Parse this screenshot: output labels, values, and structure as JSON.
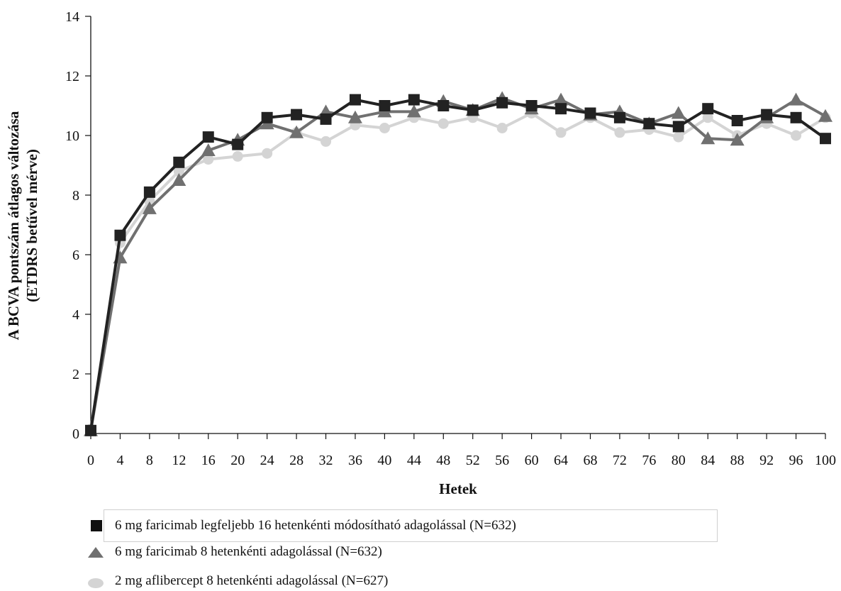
{
  "chart_data": {
    "type": "line",
    "title": "",
    "xlabel": "Hetek",
    "ylabel_line1": "A BCVA pontszám átlagos változása",
    "ylabel_line2": "(ETDRS betűvel mérve)",
    "xlim": [
      0,
      100
    ],
    "ylim": [
      0,
      14
    ],
    "xticks": [
      0,
      4,
      8,
      12,
      16,
      20,
      24,
      28,
      32,
      36,
      40,
      44,
      48,
      52,
      56,
      60,
      64,
      68,
      72,
      76,
      80,
      84,
      88,
      92,
      96,
      100
    ],
    "yticks": [
      0,
      2,
      4,
      6,
      8,
      10,
      12,
      14
    ],
    "grid": false,
    "legend_position": "bottom",
    "x": [
      0,
      4,
      8,
      12,
      16,
      20,
      24,
      28,
      32,
      36,
      40,
      44,
      48,
      52,
      56,
      60,
      64,
      68,
      72,
      76,
      80,
      84,
      88,
      92,
      96,
      100
    ],
    "series": [
      {
        "name": "2 mg aflibercept 8 hetenkénti adagolással (N=627)",
        "marker": "circle",
        "color": "#d4d4d4",
        "values": [
          0.15,
          6.4,
          7.8,
          8.8,
          9.2,
          9.3,
          9.4,
          10.1,
          9.8,
          10.35,
          10.25,
          10.6,
          10.4,
          10.6,
          10.25,
          10.75,
          10.1,
          10.6,
          10.1,
          10.2,
          9.95,
          10.6,
          10.0,
          10.4,
          10.0,
          10.6
        ]
      },
      {
        "name": "6 mg faricimab 8 hetenkénti adagolással (N=632)",
        "marker": "triangle",
        "color": "#707070",
        "values": [
          0.1,
          5.9,
          7.55,
          8.5,
          9.5,
          9.85,
          10.4,
          10.1,
          10.8,
          10.6,
          10.8,
          10.8,
          11.15,
          10.85,
          11.25,
          10.9,
          11.2,
          10.7,
          10.8,
          10.4,
          10.75,
          9.9,
          9.85,
          10.6,
          11.2,
          10.65
        ]
      },
      {
        "name": "6 mg faricimab legfeljebb 16 hetenkénti módosítható adagolással (N=632)",
        "marker": "square",
        "color": "#222222",
        "values": [
          0.1,
          6.65,
          8.1,
          9.1,
          9.95,
          9.7,
          10.6,
          10.7,
          10.55,
          11.2,
          11.0,
          11.2,
          11.0,
          10.85,
          11.1,
          11.0,
          10.9,
          10.75,
          10.6,
          10.4,
          10.3,
          10.9,
          10.5,
          10.7,
          10.6,
          9.9
        ]
      }
    ]
  }
}
